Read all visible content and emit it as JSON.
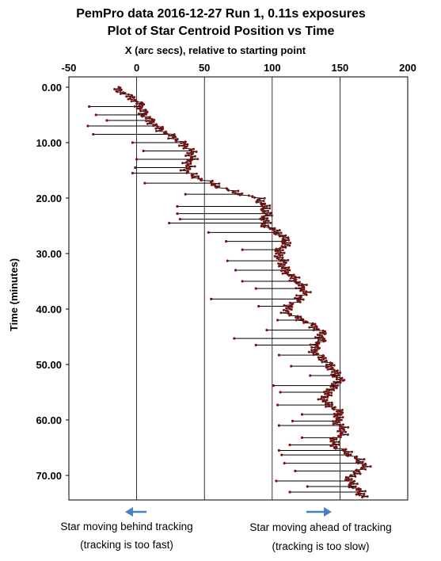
{
  "chart_data": {
    "type": "scatter",
    "title": "PemPro data 2016-12-27  Run 1, 0.11s exposures",
    "subtitle": "Plot of Star Centroid Position vs Time",
    "xlabel": "X  (arc secs), relative to starting point",
    "ylabel": "Time (minutes)",
    "xlim": [
      -50,
      200
    ],
    "ylim": [
      0,
      74
    ],
    "x_axis_position": "top",
    "y_axis_inverted": true,
    "grid": {
      "vertical": true,
      "horizontal": false
    },
    "x_ticks": [
      "-50",
      "0",
      "50",
      "100",
      "150",
      "200"
    ],
    "y_ticks": [
      "0.00",
      "10.00",
      "20.00",
      "30.00",
      "40.00",
      "50.00",
      "60.00",
      "70.00"
    ],
    "marker_color": "#7a1010",
    "line_color": "#000000",
    "arrow_color": "#4a7fc1",
    "trend": [
      {
        "t": 0.0,
        "x": -16
      },
      {
        "t": 1.0,
        "x": -10
      },
      {
        "t": 2.0,
        "x": -3
      },
      {
        "t": 3.0,
        "x": 2
      },
      {
        "t": 4.0,
        "x": 4
      },
      {
        "t": 5.0,
        "x": 6
      },
      {
        "t": 6.0,
        "x": 10
      },
      {
        "t": 7.0,
        "x": 14
      },
      {
        "t": 8.0,
        "x": 20
      },
      {
        "t": 9.0,
        "x": 27
      },
      {
        "t": 10.0,
        "x": 33
      },
      {
        "t": 11.0,
        "x": 38
      },
      {
        "t": 12.0,
        "x": 41
      },
      {
        "t": 13.0,
        "x": 40
      },
      {
        "t": 14.0,
        "x": 38
      },
      {
        "t": 15.0,
        "x": 37
      },
      {
        "t": 16.0,
        "x": 41
      },
      {
        "t": 17.0,
        "x": 53
      },
      {
        "t": 18.0,
        "x": 61
      },
      {
        "t": 19.0,
        "x": 73
      },
      {
        "t": 20.0,
        "x": 89
      },
      {
        "t": 21.0,
        "x": 93
      },
      {
        "t": 22.0,
        "x": 95
      },
      {
        "t": 23.0,
        "x": 96
      },
      {
        "t": 24.0,
        "x": 94
      },
      {
        "t": 25.0,
        "x": 95
      },
      {
        "t": 26.0,
        "x": 103
      },
      {
        "t": 27.0,
        "x": 108
      },
      {
        "t": 28.0,
        "x": 111
      },
      {
        "t": 29.0,
        "x": 107
      },
      {
        "t": 30.0,
        "x": 104
      },
      {
        "t": 31.0,
        "x": 107
      },
      {
        "t": 32.0,
        "x": 108
      },
      {
        "t": 33.0,
        "x": 109
      },
      {
        "t": 34.0,
        "x": 114
      },
      {
        "t": 35.0,
        "x": 118
      },
      {
        "t": 36.0,
        "x": 122
      },
      {
        "t": 37.0,
        "x": 124
      },
      {
        "t": 38.0,
        "x": 121
      },
      {
        "t": 39.0,
        "x": 116
      },
      {
        "t": 40.0,
        "x": 110
      },
      {
        "t": 41.0,
        "x": 113
      },
      {
        "t": 42.0,
        "x": 123
      },
      {
        "t": 43.0,
        "x": 130
      },
      {
        "t": 44.0,
        "x": 136
      },
      {
        "t": 45.0,
        "x": 137
      },
      {
        "t": 46.0,
        "x": 135
      },
      {
        "t": 47.0,
        "x": 131
      },
      {
        "t": 48.0,
        "x": 132
      },
      {
        "t": 49.0,
        "x": 138
      },
      {
        "t": 50.0,
        "x": 142
      },
      {
        "t": 51.0,
        "x": 145
      },
      {
        "t": 52.0,
        "x": 148
      },
      {
        "t": 53.0,
        "x": 150
      },
      {
        "t": 54.0,
        "x": 145
      },
      {
        "t": 55.0,
        "x": 142
      },
      {
        "t": 56.0,
        "x": 138
      },
      {
        "t": 57.0,
        "x": 140
      },
      {
        "t": 58.0,
        "x": 147
      },
      {
        "t": 59.0,
        "x": 150
      },
      {
        "t": 60.0,
        "x": 147
      },
      {
        "t": 61.0,
        "x": 150
      },
      {
        "t": 62.0,
        "x": 153
      },
      {
        "t": 63.0,
        "x": 149
      },
      {
        "t": 64.0,
        "x": 144
      },
      {
        "t": 65.0,
        "x": 148
      },
      {
        "t": 66.0,
        "x": 156
      },
      {
        "t": 67.0,
        "x": 162
      },
      {
        "t": 68.0,
        "x": 168
      },
      {
        "t": 69.0,
        "x": 166
      },
      {
        "t": 70.0,
        "x": 158
      },
      {
        "t": 71.0,
        "x": 157
      },
      {
        "t": 72.0,
        "x": 160
      },
      {
        "t": 73.0,
        "x": 165
      },
      {
        "t": 74.0,
        "x": 168
      }
    ],
    "excursions": [
      {
        "t": 3.5,
        "x": -35
      },
      {
        "t": 5.0,
        "x": -30
      },
      {
        "t": 6.0,
        "x": -22
      },
      {
        "t": 7.0,
        "x": -36
      },
      {
        "t": 8.5,
        "x": -32
      },
      {
        "t": 10.0,
        "x": -3
      },
      {
        "t": 11.5,
        "x": 5
      },
      {
        "t": 13.0,
        "x": 0
      },
      {
        "t": 14.5,
        "x": -1
      },
      {
        "t": 15.5,
        "x": -3
      },
      {
        "t": 17.3,
        "x": 6
      },
      {
        "t": 19.3,
        "x": 36
      },
      {
        "t": 21.5,
        "x": 30
      },
      {
        "t": 22.8,
        "x": 30
      },
      {
        "t": 23.8,
        "x": 32
      },
      {
        "t": 24.5,
        "x": 24
      },
      {
        "t": 26.2,
        "x": 53
      },
      {
        "t": 27.8,
        "x": 66
      },
      {
        "t": 29.3,
        "x": 78
      },
      {
        "t": 31.3,
        "x": 67
      },
      {
        "t": 33.0,
        "x": 73
      },
      {
        "t": 35.0,
        "x": 78
      },
      {
        "t": 36.3,
        "x": 88
      },
      {
        "t": 38.2,
        "x": 55
      },
      {
        "t": 39.5,
        "x": 90
      },
      {
        "t": 42.0,
        "x": 104
      },
      {
        "t": 43.8,
        "x": 96
      },
      {
        "t": 45.3,
        "x": 72
      },
      {
        "t": 46.5,
        "x": 88
      },
      {
        "t": 48.3,
        "x": 105
      },
      {
        "t": 50.3,
        "x": 114
      },
      {
        "t": 52.0,
        "x": 128
      },
      {
        "t": 53.8,
        "x": 101
      },
      {
        "t": 55.0,
        "x": 106
      },
      {
        "t": 57.3,
        "x": 104
      },
      {
        "t": 59.0,
        "x": 122
      },
      {
        "t": 60.2,
        "x": 115
      },
      {
        "t": 61.0,
        "x": 105
      },
      {
        "t": 63.2,
        "x": 122
      },
      {
        "t": 64.5,
        "x": 113
      },
      {
        "t": 65.5,
        "x": 105
      },
      {
        "t": 66.3,
        "x": 107
      },
      {
        "t": 67.8,
        "x": 109
      },
      {
        "t": 69.2,
        "x": 117
      },
      {
        "t": 71.0,
        "x": 103
      },
      {
        "t": 72.0,
        "x": 126
      },
      {
        "t": 73.0,
        "x": 113
      }
    ]
  },
  "captions": {
    "left_line1": "Star moving behind tracking",
    "left_line2": "(tracking is too fast)",
    "right_line1": "Star moving ahead of tracking",
    "right_line2": "(tracking is too slow)"
  }
}
